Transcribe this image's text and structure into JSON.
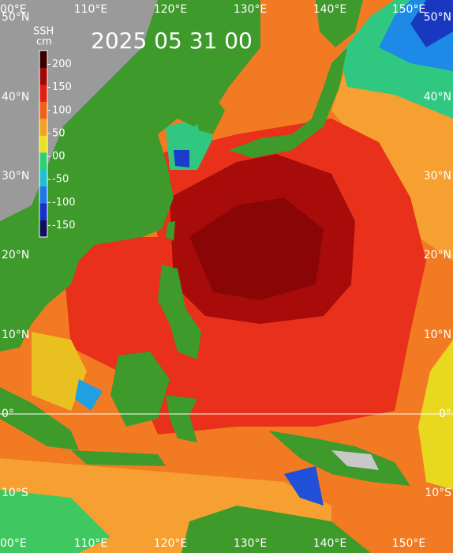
{
  "map": {
    "title": "2025 05 31 00",
    "colorbar": {
      "title": "SSH",
      "unit": "cm",
      "range": [
        -175,
        230
      ],
      "ticks": [
        200,
        150,
        100,
        50,
        {
          "value": 0,
          "label": "00"
        },
        -50,
        -100,
        -150
      ],
      "colors": [
        "#10105a",
        "#1830c8",
        "#1e78e8",
        "#20c0d0",
        "#30d070",
        "#e8e020",
        "#f5a020",
        "#f06018",
        "#e02010",
        "#a00808",
        "#3a0000"
      ]
    },
    "lat_labels": [
      "50°N",
      "40°N",
      "30°N",
      "20°N",
      "10°N",
      "0°",
      "10°S"
    ],
    "lon_labels": [
      "00°E",
      "110°E",
      "120°E",
      "130°E",
      "140°E",
      "150°E"
    ]
  }
}
